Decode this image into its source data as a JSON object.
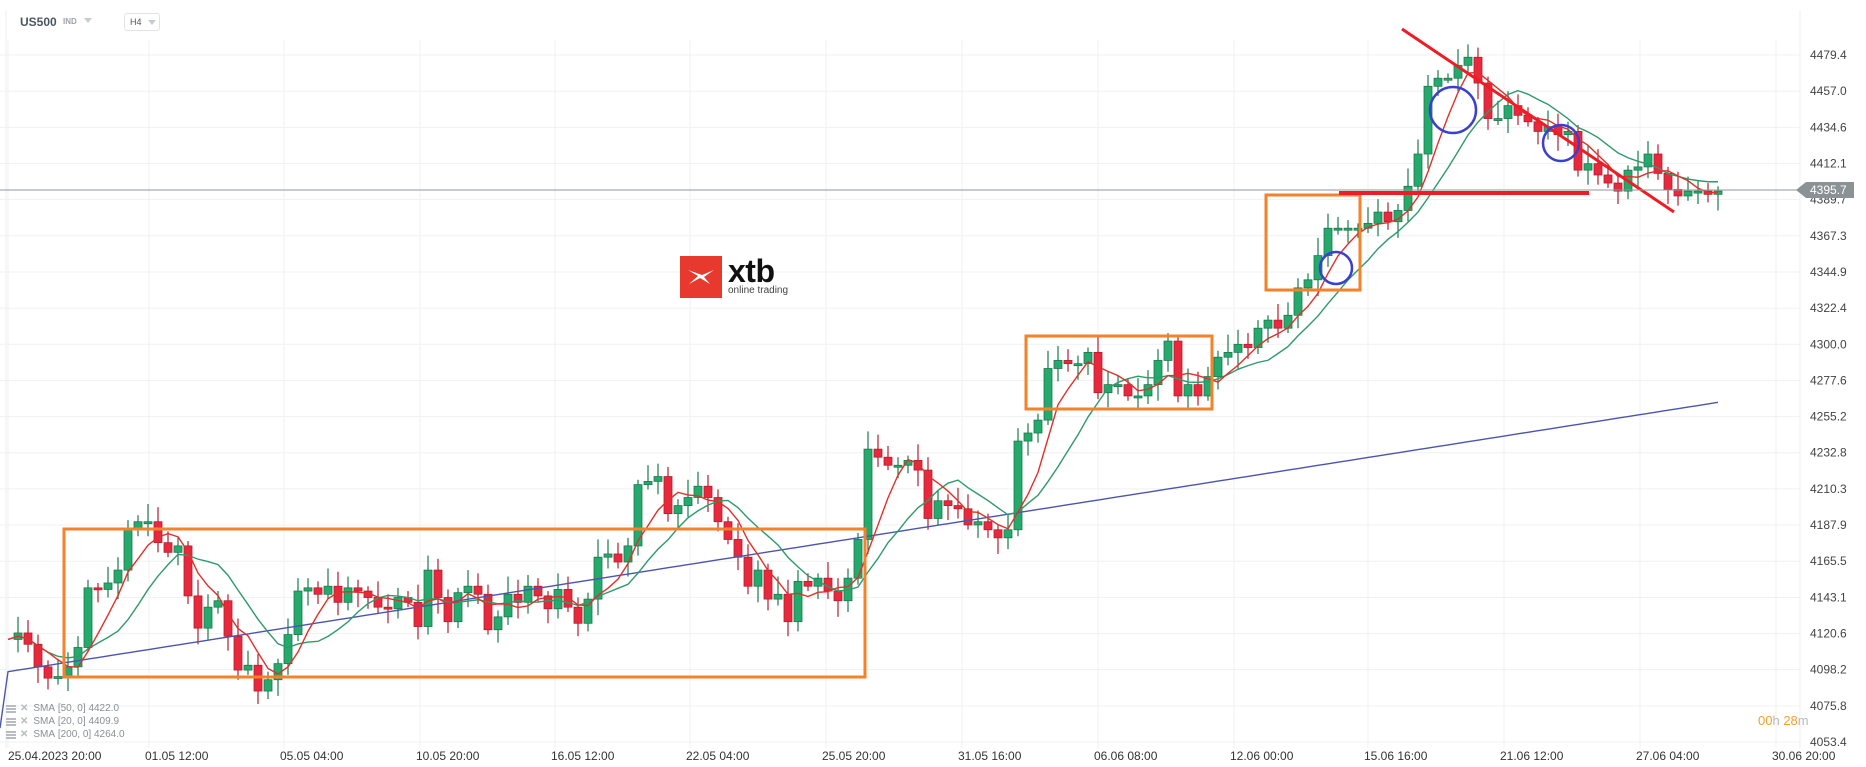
{
  "header": {
    "symbol": "US500",
    "market": "IND",
    "timeframe": "H4"
  },
  "logo": {
    "brand": "xtb",
    "tagline": "online trading"
  },
  "legend": [
    {
      "label": "SMA",
      "params": "[50,  0]",
      "value": "4422.0",
      "color": "#2e9a6a"
    },
    {
      "label": "SMA",
      "params": "[20,  0]",
      "value": "4409.9",
      "color": "#e0302a"
    },
    {
      "label": "SMA",
      "params": "[200,  0]",
      "value": "4264.0",
      "color": "#4b55b0"
    }
  ],
  "countdown": {
    "hours": "00",
    "h_unit": "h",
    "minutes": "28",
    "m_unit": "m"
  },
  "current_price": "4395.7",
  "colors": {
    "bull": "#26a96c",
    "bear": "#e8283c",
    "sma20": "#e0302a",
    "sma50": "#2e9a6a",
    "sma200": "#4b55b0",
    "rect": "#f5822a",
    "circle": "#3b3fd0",
    "trendline": "#ee1c24",
    "price_tag": "#8a9296"
  },
  "chart_data": {
    "type": "candlestick",
    "title": "US500 H4",
    "xlabel": "",
    "ylabel": "",
    "ylim": [
      4053.4,
      4490.0
    ],
    "y_ticks": [
      "4479.4",
      "4457.0",
      "4434.6",
      "4412.1",
      "4389.7",
      "4367.3",
      "4344.9",
      "4322.4",
      "4300.0",
      "4277.6",
      "4255.2",
      "4232.8",
      "4210.3",
      "4187.9",
      "4165.5",
      "4143.1",
      "4120.6",
      "4098.2",
      "4075.8",
      "4053.4"
    ],
    "x_ticks": [
      "25.04.2023  20:00",
      "01.05  12:00",
      "05.05  04:00",
      "10.05  20:00",
      "16.05  12:00",
      "22.05  04:00",
      "25.05  20:00",
      "31.05  16:00",
      "06.06  08:00",
      "12.06  00:00",
      "15.06  16:00",
      "21.06  12:00",
      "27.06  04:00",
      "30.06  20:00"
    ],
    "grid": true,
    "current_price": 4395.7,
    "series": [
      {
        "name": "SMA [50, 0]",
        "last": 4422.0
      },
      {
        "name": "SMA [20, 0]",
        "last": 4409.9
      },
      {
        "name": "SMA [200, 0]",
        "last": 4264.0
      }
    ],
    "annotations": [
      {
        "type": "rectangle",
        "color": "orange",
        "from": "27.04",
        "to": "25.05",
        "range": [
          4096,
          4187
        ]
      },
      {
        "type": "rectangle",
        "color": "orange",
        "from": "01.06",
        "to": "09.06",
        "range": [
          4258,
          4304
        ]
      },
      {
        "type": "rectangle",
        "color": "orange",
        "from": "12.06",
        "to": "14.06",
        "range": [
          4333,
          4393
        ]
      },
      {
        "type": "horizontal-line",
        "color": "red",
        "price": 4393
      },
      {
        "type": "trendline",
        "color": "red",
        "from_price": 4492,
        "to_price": 4380
      },
      {
        "type": "circle",
        "color": "blue",
        "count": 3
      }
    ]
  }
}
